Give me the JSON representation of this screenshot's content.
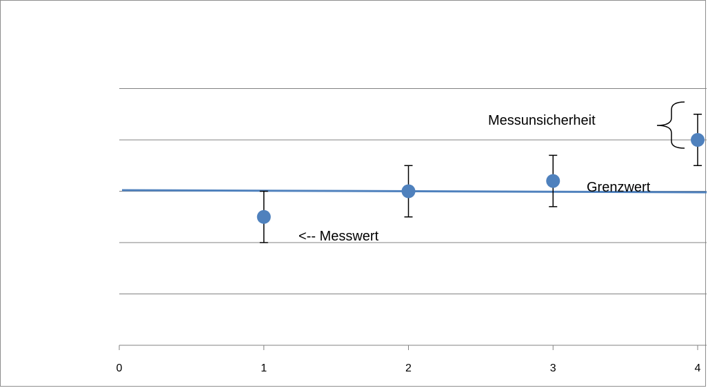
{
  "chart_data": {
    "type": "scatter",
    "x_ticks": [
      0,
      1,
      2,
      3,
      4
    ],
    "xlim": [
      0,
      4
    ],
    "ylim": [
      0,
      6
    ],
    "y_gridlines": [
      1,
      2,
      3,
      4,
      5,
      6
    ],
    "grid": true,
    "y_tick_labels_shown": false,
    "points": [
      {
        "x": 1,
        "y": 2.5,
        "err": 0.5
      },
      {
        "x": 2,
        "y": 3.0,
        "err": 0.5
      },
      {
        "x": 3,
        "y": 3.2,
        "err": 0.5
      },
      {
        "x": 4,
        "y": 4.0,
        "err": 0.5
      }
    ],
    "threshold": {
      "y_start": 3.02,
      "y_end": 2.98
    },
    "annotations": {
      "messwert": "<-- Messwert",
      "grenzwert": "Grenzwert",
      "messunsicherheit": "Messunsicherheit"
    },
    "colors": {
      "marker": "#4f81bd",
      "threshold_line": "#4f81bd",
      "grid": "#808080",
      "error_bar": "#000000"
    }
  }
}
